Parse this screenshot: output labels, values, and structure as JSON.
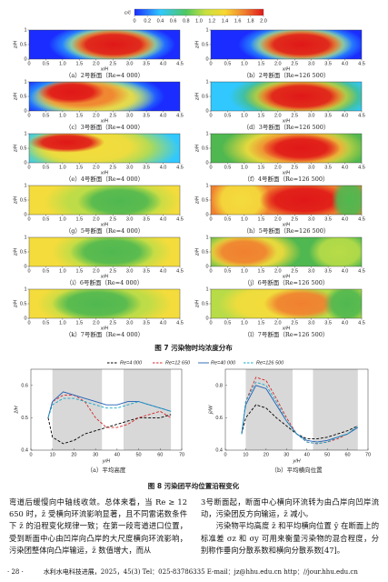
{
  "figure7": {
    "colorbar": {
      "label": "c/c̄",
      "lim": [
        0,
        2
      ],
      "ticks": [
        0,
        0.2,
        0.4,
        0.6,
        0.8,
        {
          "value": 1,
          "label": "1.0"
        },
        1.2,
        1.4,
        1.6,
        1.8,
        {
          "value": 2,
          "label": "2.0"
        }
      ]
    },
    "x_label": "x/H",
    "y_label": "z/H",
    "xlim": [
      0,
      4.5
    ],
    "xticks": [
      0,
      0.5,
      {
        "value": 1,
        "label": "1.0"
      },
      1.5,
      {
        "value": 2,
        "label": "2.0"
      },
      2.5,
      {
        "value": 3,
        "label": "3.0"
      },
      3.5,
      {
        "value": 4,
        "label": "4.0"
      },
      4.5
    ],
    "ylim": [
      0,
      1
    ],
    "yticks": [
      0,
      0.5,
      1
    ],
    "panels": [
      {
        "caption": "（a）2号断面（Re=4 000）"
      },
      {
        "caption": "（b）2号断面（Re=126 500）"
      },
      {
        "caption": "（c）3号断面（Re=4 000）"
      },
      {
        "caption": "（d）3号断面（Re=126 500）"
      },
      {
        "caption": "（e）4号断面（Re=4 000）"
      },
      {
        "caption": "（f）4号断面（Re=126 500）"
      },
      {
        "caption": "（g）5号断面（Re=4 000）"
      },
      {
        "caption": "（h）5号断面（Re=126 500）"
      },
      {
        "caption": "（i）6号断面（Re=4 000）"
      },
      {
        "caption": "（j）6号断面（Re=126 500）"
      },
      {
        "caption": "（k）7号断面（Re=4 000）"
      },
      {
        "caption": "（l）7号断面（Re=126 500）"
      }
    ],
    "caption": "图 7  污染物时均浓度分布"
  },
  "chart_data": [
    {
      "type": "line",
      "caption": "（a）平均高度",
      "x_label": "y/H",
      "y_label": "z̄/H",
      "xlim": [
        0,
        70
      ],
      "xticks": [
        0,
        10,
        20,
        30,
        40,
        50,
        60,
        70
      ],
      "ylim": [
        0.4,
        0.65
      ],
      "yticks": [
        0.4,
        0.5,
        0.6
      ],
      "shaded": [
        [
          10,
          33
        ],
        [
          43,
          65
        ]
      ],
      "x": [
        8,
        10,
        15,
        20,
        25,
        30,
        35,
        40,
        45,
        50,
        55,
        60,
        65
      ],
      "series": [
        {
          "name": "Re=4 000",
          "color": "#000000",
          "dash": true,
          "values": [
            0.5,
            0.44,
            0.42,
            0.43,
            0.45,
            0.46,
            0.47,
            0.48,
            0.49,
            0.5,
            0.5,
            0.5,
            0.51
          ]
        },
        {
          "name": "Re=12 650",
          "color": "#d62728",
          "dash": true,
          "values": [
            0.5,
            0.55,
            0.57,
            0.57,
            0.55,
            0.5,
            0.47,
            0.47,
            0.48,
            0.5,
            0.51,
            0.52,
            0.5
          ]
        },
        {
          "name": "Re=40 000",
          "color": "#1f5fb4",
          "dash": false,
          "values": [
            0.5,
            0.55,
            0.58,
            0.57,
            0.56,
            0.55,
            0.54,
            0.54,
            0.55,
            0.55,
            0.54,
            0.53,
            0.52
          ]
        },
        {
          "name": "Re=126 500",
          "color": "#17a8c8",
          "dash": true,
          "values": [
            0.5,
            0.54,
            0.56,
            0.56,
            0.55,
            0.54,
            0.53,
            0.53,
            0.54,
            0.55,
            0.54,
            0.53,
            0.52
          ]
        }
      ]
    },
    {
      "type": "line",
      "caption": "（b）平均横向位置",
      "x_label": "y/H",
      "y_label": "ȳ/W",
      "xlim": [
        0,
        70
      ],
      "xticks": [
        0,
        10,
        20,
        30,
        40,
        50,
        60,
        70
      ],
      "ylim": [
        0.4,
        0.9
      ],
      "yticks": [
        0.4,
        0.6,
        0.8
      ],
      "shaded": [
        [
          10,
          33
        ],
        [
          43,
          65
        ]
      ],
      "x": [
        8,
        10,
        15,
        20,
        25,
        30,
        35,
        40,
        45,
        50,
        55,
        60,
        65
      ],
      "series": [
        {
          "name": "Re=4 000",
          "color": "#000000",
          "dash": true,
          "values": [
            0.5,
            0.6,
            0.68,
            0.66,
            0.6,
            0.55,
            0.5,
            0.47,
            0.47,
            0.48,
            0.5,
            0.52,
            0.55
          ]
        },
        {
          "name": "Re=12 650",
          "color": "#d62728",
          "dash": true,
          "values": [
            0.5,
            0.7,
            0.85,
            0.83,
            0.72,
            0.6,
            0.5,
            0.45,
            0.44,
            0.45,
            0.47,
            0.5,
            0.55
          ]
        },
        {
          "name": "Re=40 000",
          "color": "#1f5fb4",
          "dash": false,
          "values": [
            0.5,
            0.68,
            0.8,
            0.78,
            0.68,
            0.58,
            0.5,
            0.46,
            0.45,
            0.46,
            0.48,
            0.5,
            0.54
          ]
        },
        {
          "name": "Re=126 500",
          "color": "#17a8c8",
          "dash": true,
          "values": [
            0.5,
            0.7,
            0.82,
            0.8,
            0.7,
            0.58,
            0.5,
            0.45,
            0.44,
            0.45,
            0.48,
            0.5,
            0.55
          ]
        }
      ]
    }
  ],
  "figure8_caption": "图 8  污染团平均位置沿程变化",
  "body": {
    "left": "弯道后缓慢向中轴线收敛。总体来看，当 Re ≥ 12 650 时，z̄ 受横向环流影响显著，且不同雷诺数条件下 z̄ 的沿程变化规律一致；在第一段弯道进口位置，受到断面中心由凹岸向凸岸的大尺度横向环流影响，污染团整体向凸岸输运，z̄ 数值增大，而从",
    "right": [
      "3号断面起，断面中心横向环流转为由凸岸向凹岸流动，污染团反方向输运，z̄ 减小。",
      "污染物平均高度 z̄ 和平均横向位置 ȳ 在断面上的标准差 σz 和 σy 可用来衡量污染物的混合程度，分别称作垂向分散系数和横向分散系数[47]。"
    ]
  },
  "footer": {
    "page": "· 28 ·",
    "journal": "水利水电科技进展，2025，45(3)    Tel：025-83786335    E-mail：jz@hhu.edu.cn    http：//jour.hhu.edu.cn"
  }
}
